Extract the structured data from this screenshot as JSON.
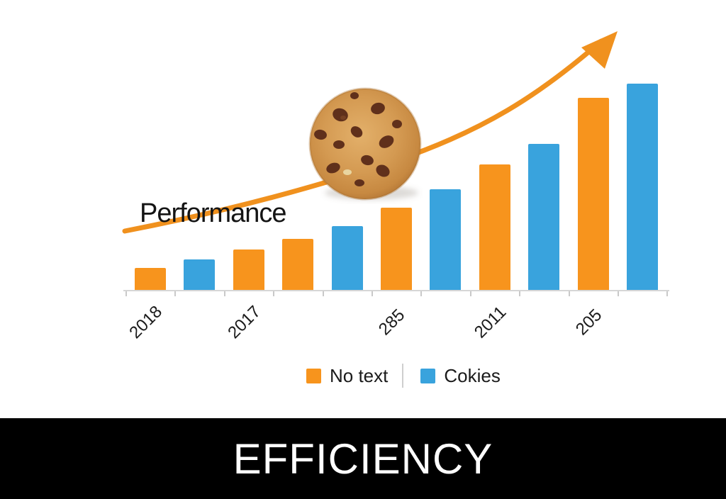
{
  "annotation": {
    "label": "Performance"
  },
  "banner": {
    "title": "EFFICIENCY",
    "bg": "#000000",
    "text_color": "#ffffff"
  },
  "chart_data": {
    "type": "bar",
    "title": "",
    "xlabel": "",
    "ylabel": "",
    "ylim": [
      0,
      100
    ],
    "grid": false,
    "legend_position": "bottom",
    "annotations": [
      "Performance"
    ],
    "x_tick_labels": [
      "2018",
      "2017",
      "285",
      "2011",
      "205"
    ],
    "legend": [
      {
        "label": "No text",
        "color": "#F7941D"
      },
      {
        "label": "Cokies",
        "color": "#39A3DD"
      }
    ],
    "bars": [
      {
        "series": "No text",
        "value": 11
      },
      {
        "series": "Cokies",
        "value": 15
      },
      {
        "series": "No text",
        "value": 20
      },
      {
        "series": "No text",
        "value": 25
      },
      {
        "series": "Cokies",
        "value": 31
      },
      {
        "series": "No text",
        "value": 40
      },
      {
        "series": "Cokies",
        "value": 49
      },
      {
        "series": "No text",
        "value": 61
      },
      {
        "series": "Cokies",
        "value": 71
      },
      {
        "series": "No text",
        "value": 93
      },
      {
        "series": "Cokies",
        "value": 100
      }
    ],
    "decorations": [
      "chocolate-chip-cookie",
      "upward-trend-arrow"
    ],
    "arrow_color": "#F0911E"
  }
}
